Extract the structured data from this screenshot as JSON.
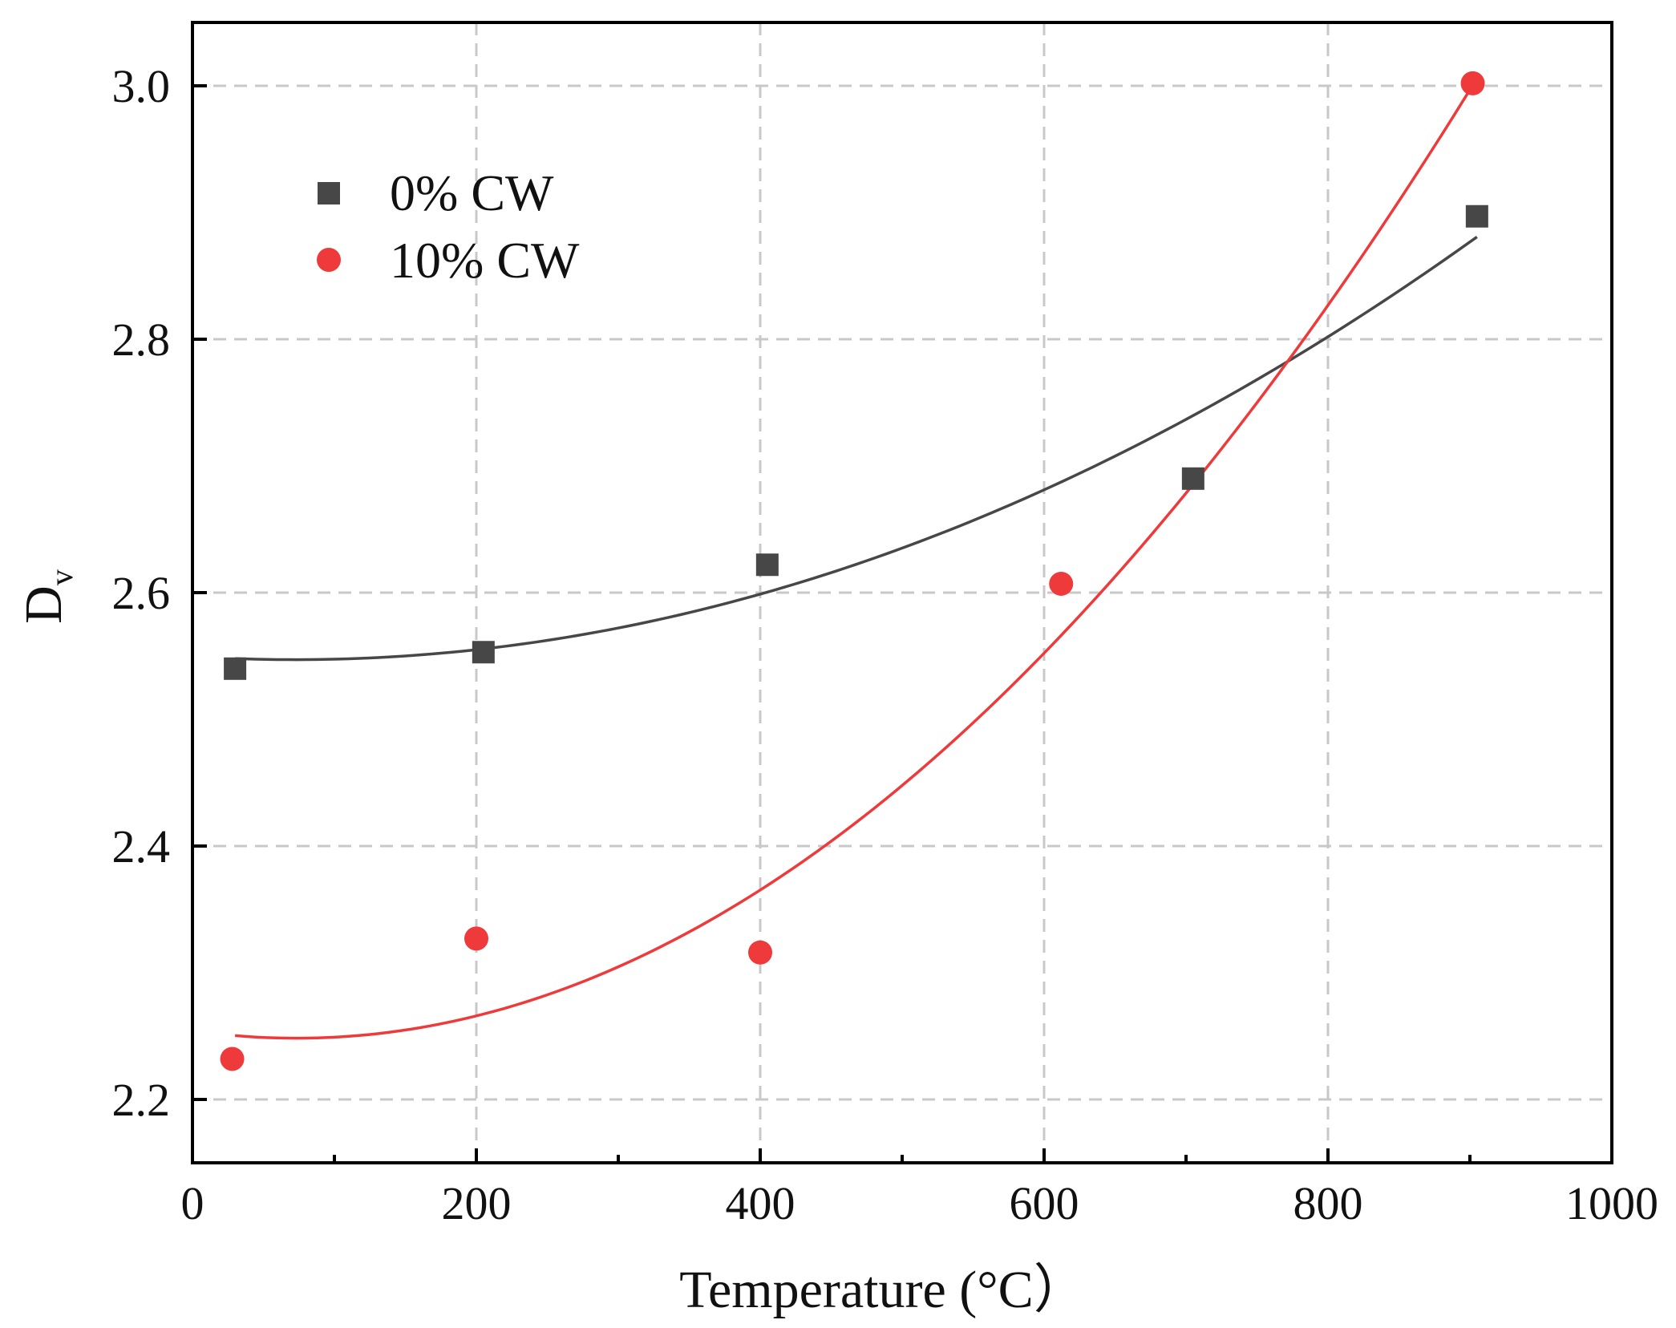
{
  "chart_data": {
    "type": "scatter",
    "title": "",
    "xlabel": "Temperature (°C）",
    "ylabel": "D",
    "ylabel_subscript": "v",
    "xlim": [
      0,
      1000
    ],
    "ylim": [
      2.15,
      3.05
    ],
    "x_ticks": [
      0,
      200,
      400,
      600,
      800,
      1000
    ],
    "x_tick_labels": [
      "0",
      "200",
      "400",
      "600",
      "800",
      "1000"
    ],
    "x_minor_ticks": [
      100,
      300,
      500,
      700,
      900
    ],
    "y_ticks": [
      2.2,
      2.4,
      2.6,
      2.8,
      3.0
    ],
    "y_tick_labels": [
      "2.2",
      "2.4",
      "2.6",
      "2.8",
      "3.0"
    ],
    "grid": true,
    "legend_position": "top-left",
    "series": [
      {
        "name": "0% CW",
        "marker": "square",
        "color": "#474747",
        "x": [
          30,
          205,
          405,
          705,
          905
        ],
        "y": [
          2.54,
          2.553,
          2.622,
          2.69,
          2.897
        ],
        "fit": {
          "kind": "quadratic",
          "x_range": [
            30,
            905
          ],
          "coefficients": [
            2.5496,
            -6.94e-05,
            4.81e-07
          ]
        }
      },
      {
        "name": "10% CW",
        "marker": "circle",
        "color": "#ee3a3a",
        "x": [
          28,
          200,
          400,
          612,
          902
        ],
        "y": [
          2.232,
          2.327,
          2.316,
          2.607,
          3.002
        ],
        "fit": {
          "kind": "quadratic",
          "x_range": [
            30,
            902
          ],
          "coefficients": [
            2.2542,
            -0.0001603,
            1.095e-06
          ]
        }
      }
    ]
  }
}
